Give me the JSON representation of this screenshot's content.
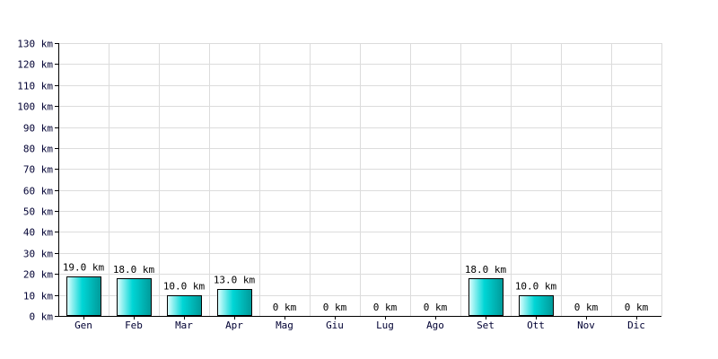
{
  "chart_data": {
    "type": "bar",
    "categories": [
      "Gen",
      "Feb",
      "Mar",
      "Apr",
      "Mag",
      "Giu",
      "Lug",
      "Ago",
      "Set",
      "Ott",
      "Nov",
      "Dic"
    ],
    "values": [
      19,
      18,
      10,
      13,
      0,
      0,
      0,
      0,
      18,
      10,
      0,
      0
    ],
    "value_labels": [
      "19.0 km",
      "18.0 km",
      "10.0 km",
      "13.0 km",
      "0 km",
      "0 km",
      "0 km",
      "0 km",
      "18.0 km",
      "10.0 km",
      "0 km",
      "0 km"
    ],
    "y_ticks": [
      0,
      10,
      20,
      30,
      40,
      50,
      60,
      70,
      80,
      90,
      100,
      110,
      120,
      130
    ],
    "y_tick_labels": [
      "0 km",
      "10 km",
      "20 km",
      "30 km",
      "40 km",
      "50 km",
      "60 km",
      "70 km",
      "80 km",
      "90 km",
      "100 km",
      "110 km",
      "120 km",
      "130 km"
    ],
    "ylim": [
      0,
      130
    ],
    "grid": true,
    "colors": {
      "bar_light": "#e0ffff",
      "bar_mid": "#00d6d6",
      "bar_dark": "#009999",
      "bar_border": "#000000",
      "grid": "#dcdcdc",
      "axis": "#000000",
      "text": "#000033"
    }
  }
}
